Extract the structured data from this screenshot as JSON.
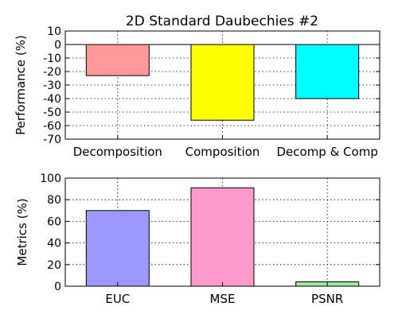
{
  "chart_data": [
    {
      "type": "bar",
      "title": "2D Standard Daubechies #2",
      "xlabel": "",
      "ylabel": "Performance (%)",
      "categories": [
        "Decomposition",
        "Composition",
        "Decomp & Comp"
      ],
      "values": [
        -23,
        -56,
        -40
      ],
      "colors": [
        "#ff9999",
        "#ffff00",
        "#00ffff"
      ],
      "ylim": [
        -70,
        10
      ],
      "yticks": [
        10,
        0,
        -10,
        -20,
        -30,
        -40,
        -50,
        -60,
        -70
      ],
      "grid": true,
      "zero_line": true
    },
    {
      "type": "bar",
      "title": "",
      "xlabel": "",
      "ylabel": "Metrics (%)",
      "categories": [
        "EUC",
        "MSE",
        "PSNR"
      ],
      "values": [
        70,
        91,
        4
      ],
      "colors": [
        "#9999ff",
        "#ff99cc",
        "#99ee99"
      ],
      "ylim": [
        0,
        100
      ],
      "yticks": [
        0,
        20,
        40,
        60,
        80,
        100
      ],
      "grid": true
    }
  ]
}
